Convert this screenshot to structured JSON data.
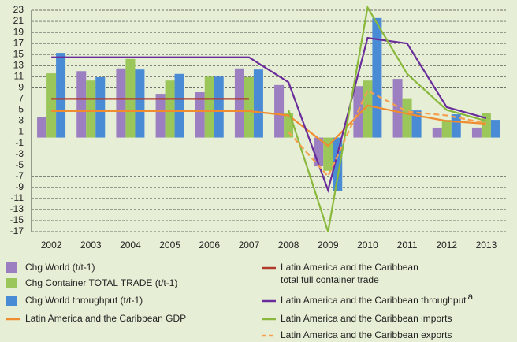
{
  "chart_data": {
    "type": "bar-line",
    "categories": [
      "2002",
      "2003",
      "2004",
      "2005",
      "2006",
      "2007",
      "2008",
      "2009",
      "2010",
      "2011",
      "2012",
      "2013"
    ],
    "ylim": [
      -17,
      23
    ],
    "yticks": [
      -17,
      -15,
      -13,
      -11,
      -9,
      -7,
      -5,
      -3,
      -1,
      1,
      3,
      5,
      7,
      9,
      11,
      13,
      15,
      17,
      19,
      21,
      23
    ],
    "grid": true,
    "series": [
      {
        "name": "Chg World (t/t-1)",
        "kind": "bar",
        "color": "#9b7fc0",
        "values": [
          3.7,
          12,
          12.5,
          7.9,
          8.2,
          12.5,
          9.5,
          -5.2,
          9.3,
          10.6,
          1.8,
          1.8
        ]
      },
      {
        "name": "Chg Container TOTAL TRADE (t/t-1)",
        "kind": "bar",
        "color": "#9bc65a",
        "values": [
          11.6,
          10.3,
          14.2,
          10.3,
          11,
          10.9,
          4.4,
          -6,
          10.3,
          7.1,
          3.2,
          4.4
        ]
      },
      {
        "name": "Chg World throughput (t/t-1)",
        "kind": "bar",
        "color": "#4a8bd6",
        "values": [
          15.3,
          10.9,
          12.3,
          11.5,
          11,
          12.3,
          null,
          -9.7,
          21.6,
          4.9,
          4.2,
          3.2
        ]
      },
      {
        "name": "Latin America and the Caribbean GDP",
        "kind": "line",
        "color": "#f08c30",
        "values": [
          4.8,
          4.8,
          4.8,
          4.8,
          4.8,
          4.8,
          4,
          -1.5,
          5.8,
          4.3,
          3,
          2.5
        ]
      },
      {
        "name": "Latin America and the Caribbean\ntotal full container trade",
        "kind": "line",
        "color": "#b03a2e",
        "values": [
          7,
          7,
          7,
          7,
          7,
          7,
          null,
          null,
          null,
          null,
          null,
          null
        ]
      },
      {
        "name": "Latin America and the Caribbean throughput",
        "note": "a",
        "kind": "line",
        "color": "#6a2c9a",
        "values": [
          14.5,
          14.5,
          14.5,
          14.5,
          14.5,
          14.5,
          10,
          -9.5,
          18,
          17,
          5.5,
          3.5
        ]
      },
      {
        "name": "Latin America and the Caribbean imports",
        "kind": "line",
        "color": "#8ab83c",
        "values": [
          null,
          null,
          null,
          null,
          null,
          null,
          5,
          -17,
          23.5,
          11.5,
          5,
          3
        ]
      },
      {
        "name": "Latin America and the Caribbean exports",
        "kind": "line",
        "dashed": true,
        "color": "#f5a050",
        "values": [
          null,
          null,
          null,
          null,
          null,
          null,
          1,
          -7,
          8.5,
          4.7,
          4,
          2.6
        ]
      }
    ]
  }
}
